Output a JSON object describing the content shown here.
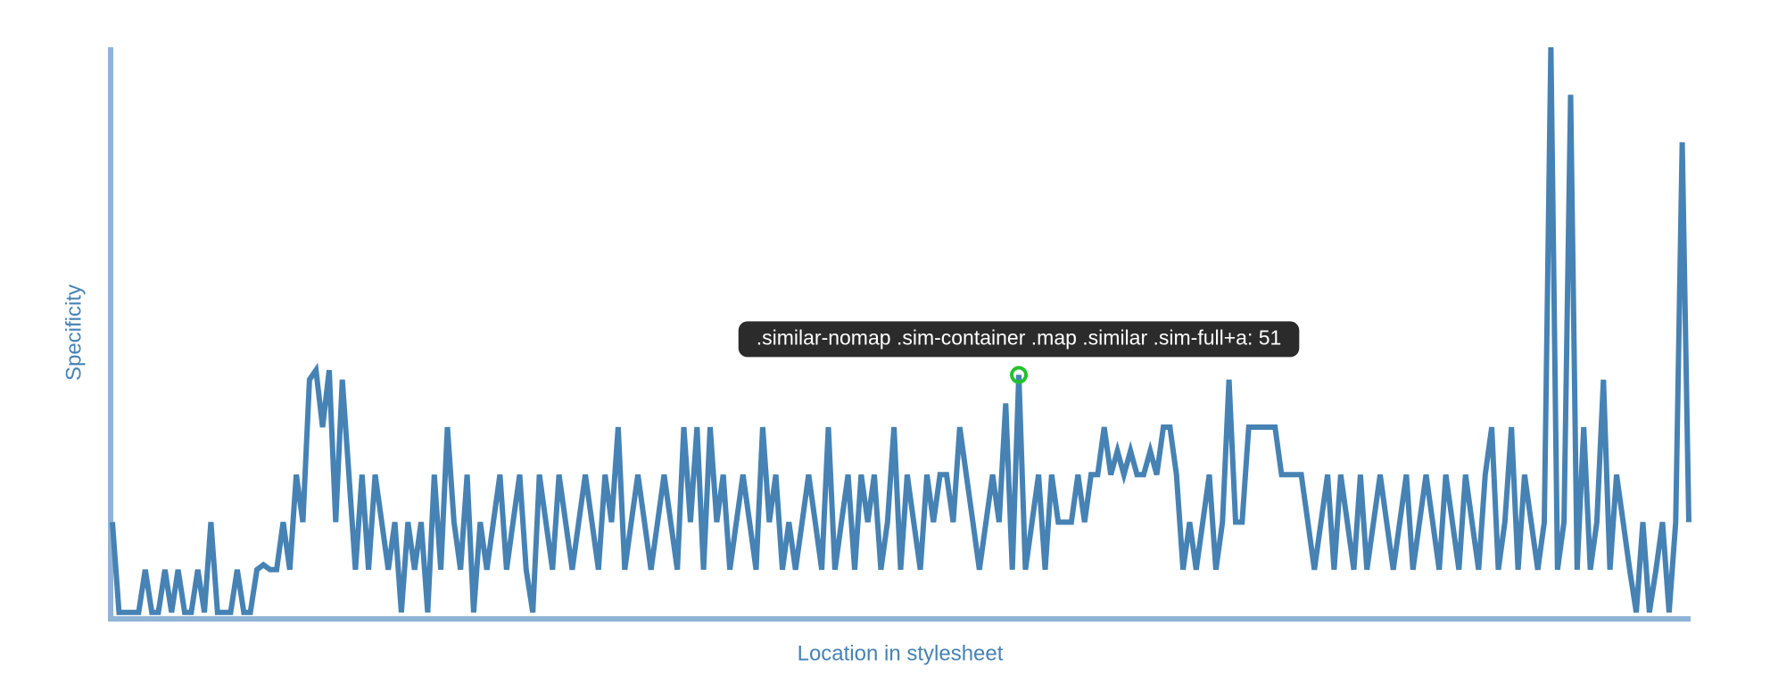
{
  "chart_data": {
    "type": "line",
    "x_label": "Location in stylesheet",
    "y_label": "Specificity",
    "ylim": [
      0,
      120
    ],
    "series": [
      {
        "name": "Specificity",
        "color": "#4682b4",
        "values": [
          20,
          1,
          1,
          1,
          1,
          10,
          1,
          1,
          10,
          1,
          10,
          1,
          1,
          10,
          1,
          20,
          1,
          1,
          1,
          10,
          1,
          1,
          10,
          11,
          10,
          10,
          20,
          10,
          30,
          20,
          50,
          52,
          40,
          52,
          20,
          50,
          30,
          10,
          30,
          10,
          30,
          20,
          10,
          20,
          1,
          20,
          10,
          20,
          1,
          30,
          10,
          40,
          20,
          10,
          30,
          1,
          20,
          10,
          20,
          30,
          10,
          20,
          30,
          10,
          1,
          30,
          20,
          10,
          30,
          20,
          10,
          20,
          30,
          20,
          10,
          30,
          20,
          40,
          10,
          20,
          30,
          20,
          10,
          20,
          30,
          20,
          10,
          40,
          20,
          40,
          10,
          40,
          20,
          30,
          10,
          20,
          30,
          20,
          10,
          40,
          20,
          30,
          10,
          20,
          10,
          20,
          30,
          20,
          10,
          40,
          10,
          20,
          30,
          10,
          30,
          20,
          30,
          10,
          20,
          40,
          10,
          30,
          20,
          10,
          30,
          20,
          30,
          30,
          20,
          40,
          30,
          20,
          10,
          20,
          30,
          20,
          45,
          10,
          51,
          10,
          20,
          30,
          10,
          30,
          20,
          20,
          20,
          30,
          20,
          30,
          30,
          40,
          30,
          35,
          30,
          35,
          30,
          30,
          35,
          30,
          40,
          40,
          30,
          10,
          20,
          10,
          20,
          30,
          10,
          20,
          50,
          20,
          20,
          40,
          40,
          40,
          40,
          40,
          30,
          30,
          30,
          30,
          20,
          10,
          20,
          30,
          10,
          30,
          20,
          10,
          30,
          10,
          20,
          30,
          20,
          10,
          20,
          30,
          10,
          20,
          30,
          20,
          10,
          30,
          20,
          10,
          30,
          20,
          10,
          30,
          40,
          10,
          20,
          40,
          10,
          30,
          20,
          10,
          20,
          120,
          10,
          20,
          110,
          10,
          40,
          10,
          20,
          50,
          10,
          30,
          20,
          10,
          1,
          20,
          1,
          10,
          20,
          1,
          20,
          100,
          20
        ]
      }
    ],
    "annotation": {
      "text": ".similar-nomap .sim-container .map .similar .sim-full+a: 51",
      "value": 51,
      "marker_color": "#22c22e"
    }
  }
}
